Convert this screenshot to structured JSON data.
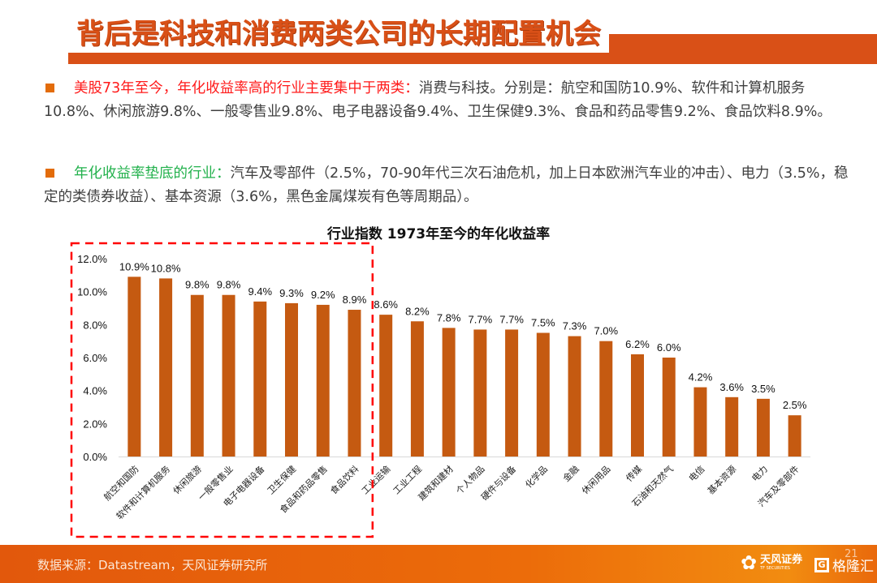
{
  "slide": {
    "title": "背后是科技和消费两类公司的长期配置机会",
    "bullet1": {
      "highlight": "美股73年至今，年化收益率高的行业主要集中于两类：",
      "text": "消费与科技。分别是：航空和国防10.9%、软件和计算机服务10.8%、休闲旅游9.8%、一般零售业9.8%、电子电器设备9.4%、卫生保健9.3%、食品和药品零售9.2%、食品饮料8.9%。"
    },
    "bullet2": {
      "highlight": "年化收益率垫底的行业：",
      "text": "汽车及零部件（2.5%，70-90年代三次石油危机，加上日本欧洲汽车业的冲击）、电力（3.5%，稳定的类债券收益）、基本资源（3.6%，黑色金属煤炭有色等周期品）。"
    },
    "footer": {
      "source": "数据来源：Datastream，天风证券研究所",
      "brand1": "天风证券",
      "brand1_sub": "TF SECURITIES",
      "brand2": "格隆汇",
      "page_number": "21"
    }
  },
  "colors": {
    "accent": "#d95017",
    "bar": "#c55a11",
    "highlight_red": "#ff1a1a",
    "highlight_green": "#22b14c",
    "dashed_box": "#ff0000"
  },
  "chart_data": {
    "type": "bar",
    "title": "行业指数 1973年至今的年化收益率",
    "xlabel": "",
    "ylabel": "",
    "ylim": [
      0,
      12
    ],
    "yticks": [
      "0.0%",
      "2.0%",
      "4.0%",
      "6.0%",
      "8.0%",
      "10.0%",
      "12.0%"
    ],
    "grid": false,
    "categories": [
      "航空和国防",
      "软件和计算机服务",
      "休闲旅游",
      "一般零售业",
      "电子电器设备",
      "卫生保健",
      "食品和药品零售",
      "食品饮料",
      "工业运输",
      "工业工程",
      "建筑和建材",
      "个人物品",
      "硬件与设备",
      "化学品",
      "金融",
      "休闲用品",
      "传媒",
      "石油和天然气",
      "电信",
      "基本资源",
      "电力",
      "汽车及零部件"
    ],
    "values": [
      10.9,
      10.8,
      9.8,
      9.8,
      9.4,
      9.3,
      9.2,
      8.9,
      8.6,
      8.2,
      7.8,
      7.7,
      7.7,
      7.5,
      7.3,
      7.0,
      6.2,
      6.0,
      4.2,
      3.6,
      3.5,
      2.5
    ],
    "data_labels": [
      "10.9%",
      "10.8%",
      "9.8%",
      "9.8%",
      "9.4%",
      "9.3%",
      "9.2%",
      "8.9%",
      "8.6%",
      "8.2%",
      "7.8%",
      "7.7%",
      "7.7%",
      "7.5%",
      "7.3%",
      "7.0%",
      "6.2%",
      "6.0%",
      "4.2%",
      "3.6%",
      "3.5%",
      "2.5%"
    ],
    "highlighted_group": "first 8 categories enclosed in red dashed box",
    "highlight_count": 8
  }
}
